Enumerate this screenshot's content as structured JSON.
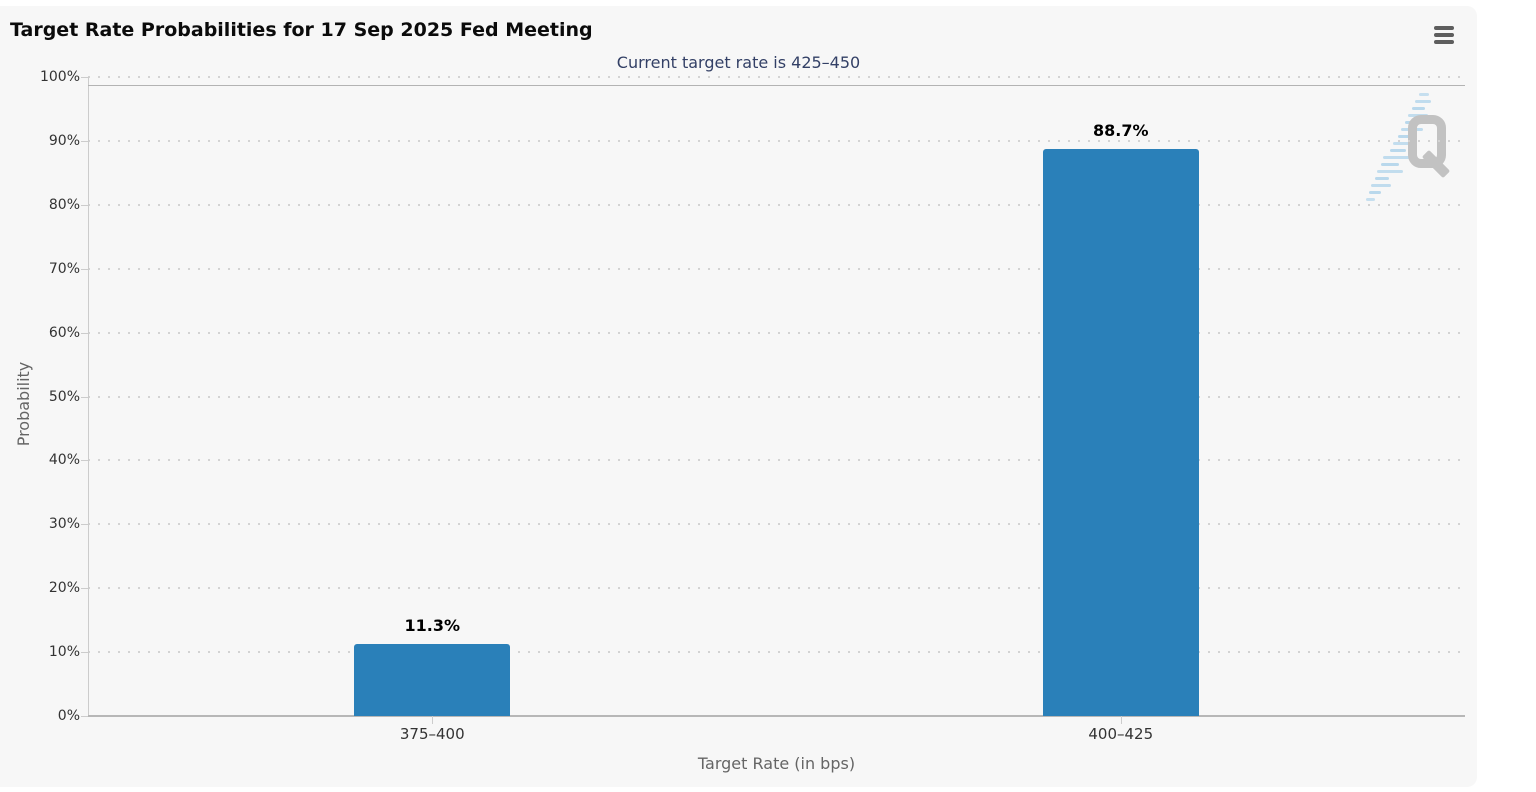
{
  "chart_data": {
    "type": "bar",
    "title": "Target Rate Probabilities for 17 Sep 2025 Fed Meeting",
    "subtitle": "Current target rate is 425–450",
    "categories": [
      "375–400",
      "400–425"
    ],
    "values": [
      11.3,
      88.7
    ],
    "value_labels": [
      "11.3%",
      "88.7%"
    ],
    "xlabel": "Target Rate (in bps)",
    "ylabel": "Probability",
    "ylim": [
      0,
      100
    ],
    "ytick_step": 10,
    "ytick_labels": [
      "0%",
      "10%",
      "20%",
      "30%",
      "40%",
      "50%",
      "60%",
      "70%",
      "80%",
      "90%",
      "100%"
    ],
    "grid": "horizontal-dotted",
    "legend": "none",
    "bar_color": "#2a80b9"
  },
  "header": {
    "menu_icon": "hamburger-icon"
  },
  "watermark": {
    "letter": "Q",
    "accent_color": "#b9d8ec",
    "letter_color": "#c2c2c2"
  },
  "colors": {
    "panel_background": "#f7f7f7",
    "subtitle_text": "#334066",
    "axis_labels": "#333333",
    "axis_titles": "#656565",
    "gridline": "#d3d3d3",
    "bar": "#2a80b9"
  }
}
